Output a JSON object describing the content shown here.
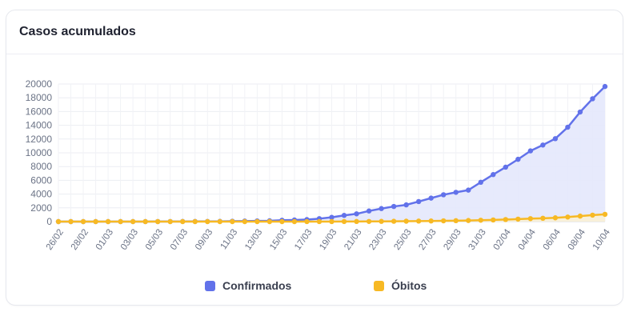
{
  "card": {
    "title": "Casos acumulados"
  },
  "chart_data": {
    "type": "line",
    "title": "",
    "xlabel": "",
    "ylabel": "",
    "ylim": [
      0,
      20000
    ],
    "y_ticks": [
      0,
      2000,
      4000,
      6000,
      8000,
      10000,
      12000,
      14000,
      16000,
      18000,
      20000
    ],
    "grid": true,
    "legend_position": "bottom",
    "x": [
      "26/02",
      "27/02",
      "28/02",
      "29/02",
      "01/03",
      "02/03",
      "03/03",
      "04/03",
      "05/03",
      "06/03",
      "07/03",
      "08/03",
      "09/03",
      "10/03",
      "11/03",
      "12/03",
      "13/03",
      "14/03",
      "15/03",
      "16/03",
      "17/03",
      "18/03",
      "19/03",
      "20/03",
      "21/03",
      "22/03",
      "23/03",
      "24/03",
      "25/03",
      "26/03",
      "27/03",
      "28/03",
      "29/03",
      "30/03",
      "31/03",
      "01/04",
      "02/04",
      "03/04",
      "04/04",
      "05/04",
      "06/04",
      "07/04",
      "08/04",
      "09/04",
      "10/04"
    ],
    "x_tick_labels": [
      "26/02",
      "28/02",
      "01/03",
      "03/03",
      "05/03",
      "07/03",
      "09/03",
      "11/03",
      "13/03",
      "15/03",
      "17/03",
      "19/03",
      "21/03",
      "23/03",
      "25/03",
      "27/03",
      "29/03",
      "31/03",
      "02/04",
      "04/04",
      "06/04",
      "08/04",
      "10/04"
    ],
    "series": [
      {
        "name": "Confirmados",
        "color": "#6272ea",
        "fill": "#e4e8fc",
        "values": [
          1,
          1,
          1,
          2,
          2,
          2,
          2,
          3,
          8,
          13,
          19,
          25,
          25,
          34,
          52,
          77,
          98,
          121,
          200,
          234,
          291,
          428,
          621,
          904,
          1128,
          1546,
          1891,
          2201,
          2433,
          2915,
          3417,
          3904,
          4256,
          4579,
          5717,
          6836,
          7910,
          9056,
          10278,
          11130,
          12056,
          13717,
          15927,
          17857,
          19638
        ]
      },
      {
        "name": "Óbitos",
        "color": "#f7b924",
        "fill": "#fdf1cf",
        "values": [
          0,
          0,
          0,
          0,
          0,
          0,
          0,
          0,
          0,
          0,
          0,
          0,
          0,
          0,
          0,
          0,
          0,
          0,
          0,
          1,
          3,
          4,
          7,
          11,
          18,
          25,
          34,
          46,
          57,
          77,
          92,
          114,
          136,
          159,
          201,
          240,
          299,
          359,
          432,
          486,
          553,
          667,
          800,
          941,
          1056
        ]
      }
    ]
  }
}
